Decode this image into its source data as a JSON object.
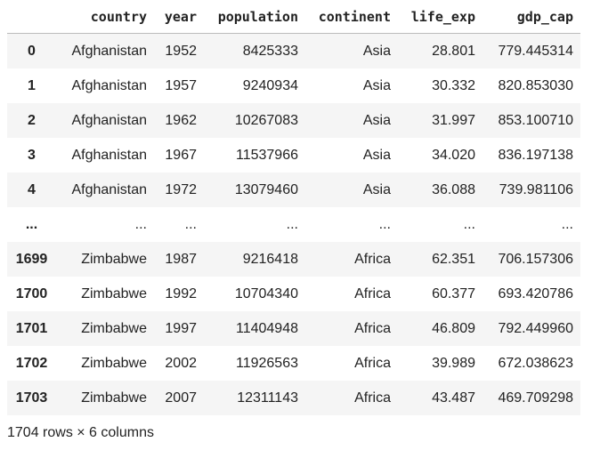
{
  "table": {
    "columns": [
      "country",
      "year",
      "population",
      "continent",
      "life_exp",
      "gdp_cap"
    ],
    "rows": [
      [
        "0",
        "Afghanistan",
        "1952",
        "8425333",
        "Asia",
        "28.801",
        "779.445314"
      ],
      [
        "1",
        "Afghanistan",
        "1957",
        "9240934",
        "Asia",
        "30.332",
        "820.853030"
      ],
      [
        "2",
        "Afghanistan",
        "1962",
        "10267083",
        "Asia",
        "31.997",
        "853.100710"
      ],
      [
        "3",
        "Afghanistan",
        "1967",
        "11537966",
        "Asia",
        "34.020",
        "836.197138"
      ],
      [
        "4",
        "Afghanistan",
        "1972",
        "13079460",
        "Asia",
        "36.088",
        "739.981106"
      ],
      [
        "...",
        "...",
        "...",
        "...",
        "...",
        "...",
        "..."
      ],
      [
        "1699",
        "Zimbabwe",
        "1987",
        "9216418",
        "Africa",
        "62.351",
        "706.157306"
      ],
      [
        "1700",
        "Zimbabwe",
        "1992",
        "10704340",
        "Africa",
        "60.377",
        "693.420786"
      ],
      [
        "1701",
        "Zimbabwe",
        "1997",
        "11404948",
        "Africa",
        "46.809",
        "792.449960"
      ],
      [
        "1702",
        "Zimbabwe",
        "2002",
        "11926563",
        "Africa",
        "39.989",
        "672.038623"
      ],
      [
        "1703",
        "Zimbabwe",
        "2007",
        "12311143",
        "Africa",
        "43.487",
        "469.709298"
      ]
    ]
  },
  "footer": "1704 rows × 6 columns"
}
